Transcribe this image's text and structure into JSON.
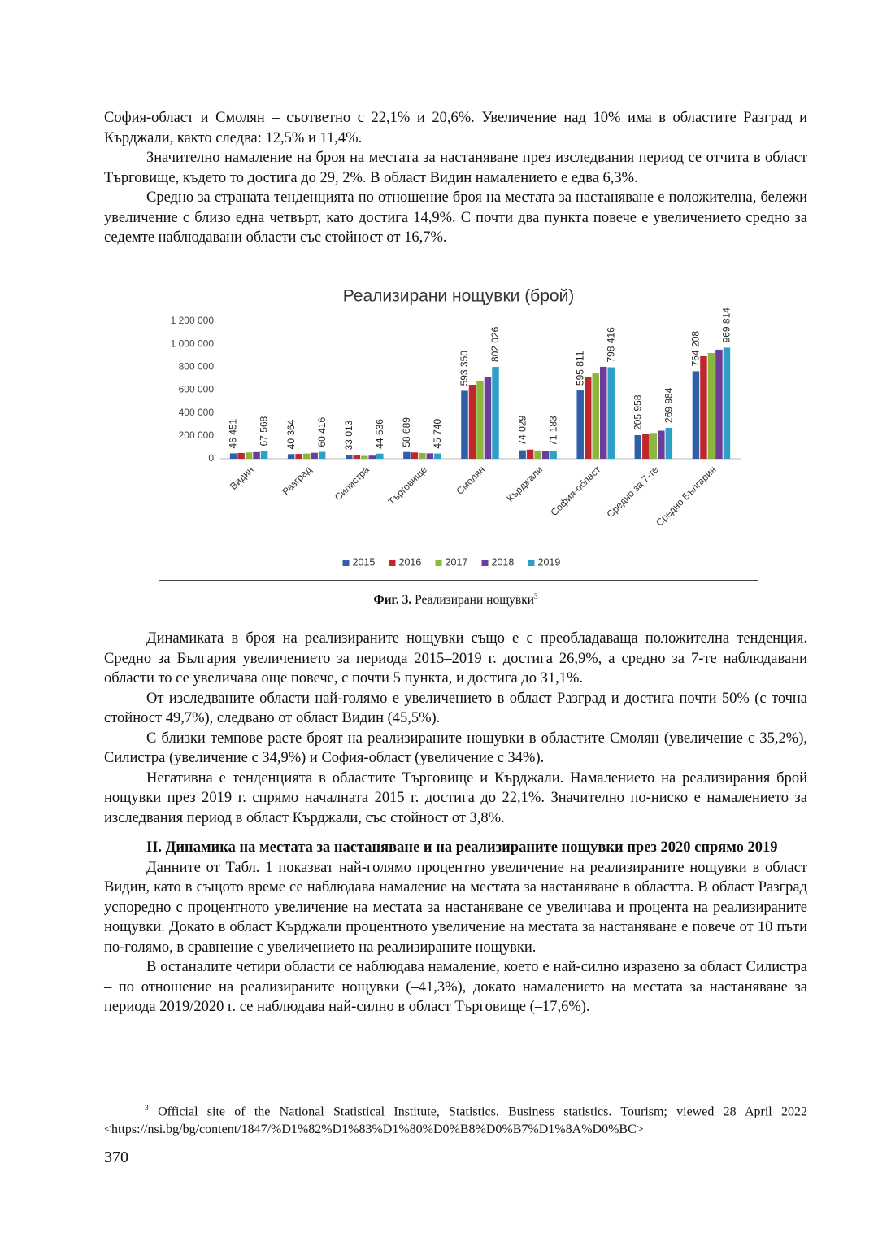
{
  "text_before": [
    "София-област и Смолян – съответно с 22,1% и 20,6%. Увеличение над 10% има в областите Разград и Кърджали, както следва: 12,5% и 11,4%.",
    "Значително намаление на броя на местата за настаняване през изследвания период се отчита в област Търговище, където то достига до 29, 2%. В област Видин намалението е едва 6,3%.",
    "Средно за страната тенденцията по отношение броя на местата за настаняване е положителна, бележи увеличение с близо една четвърт, като достига 14,9%. С почти два пункта повече е увеличението средно за седемте наблюдавани области със стойност от 16,7%."
  ],
  "chart_data": {
    "type": "bar",
    "title": "Реализирани нощувки (брой)",
    "categories": [
      "Видин",
      "Разград",
      "Силистра",
      "Търговище",
      "Смолян",
      "Кърджали",
      "София-област",
      "Средно за 7-те",
      "Средно България"
    ],
    "series": [
      {
        "name": "2015",
        "color": "#2e5fa8",
        "values": [
          46451,
          40364,
          33013,
          58689,
          593350,
          74029,
          595811,
          205958,
          764208
        ],
        "value_labels": [
          "46 451",
          "40 364",
          "33 013",
          "58 689",
          "593 350",
          "74 029",
          "595 811",
          "205 958",
          "764 208"
        ]
      },
      {
        "name": "2016",
        "color": "#c0272d",
        "values": [
          50000,
          42000,
          28000,
          55000,
          646000,
          80000,
          710000,
          215000,
          895000
        ]
      },
      {
        "name": "2017",
        "color": "#8cb63c",
        "values": [
          55000,
          45000,
          25000,
          50000,
          675000,
          72000,
          745000,
          225000,
          923000
        ]
      },
      {
        "name": "2018",
        "color": "#6a3d9a",
        "values": [
          58000,
          52000,
          27000,
          47000,
          717000,
          70000,
          803000,
          245000,
          952000
        ]
      },
      {
        "name": "2019",
        "color": "#2ea0c8",
        "values": [
          67568,
          60416,
          44536,
          45740,
          802026,
          71183,
          798416,
          269984,
          969814
        ],
        "value_labels": [
          "67 568",
          "60 416",
          "44 536",
          "45 740",
          "802 026",
          "71 183",
          "798 416",
          "269 984",
          "969 814"
        ]
      }
    ],
    "ylim": [
      0,
      1200000
    ],
    "yticks": [
      0,
      {
        "value": 200000,
        "label": "200 000"
      },
      {
        "value": 400000,
        "label": "400 000"
      },
      {
        "value": 600000,
        "label": "600 000"
      },
      {
        "value": 800000,
        "label": "800 000"
      },
      {
        "value": 1000000,
        "label": "1 000 000"
      },
      {
        "value": 1200000,
        "label": "1 200 000"
      }
    ],
    "grid": false,
    "legend": "bottom"
  },
  "caption": {
    "label": "Фиг. 3.",
    "text": "Реализирани нощувки",
    "note": "3"
  },
  "text_after": [
    "Динамиката в броя на реализираните нощувки също е с преобладаваща положителна тенденция. Средно за България увеличението за периода 2015–2019 г. достига 26,9%, а средно за 7-те наблюдавани области то се увеличава още повече, с почти 5 пункта, и достига до 31,1%.",
    "От изследваните области най-голямо е увеличението в област Разград и достига почти 50% (с точна стойност 49,7%), следвано от област Видин (45,5%).",
    "С близки темпове расте броят на реализираните нощувки в областите Смолян (увеличение с 35,2%), Силистра (увеличение с 34,9%) и София-област (увеличение с 34%).",
    "Негативна е тенденцията в областите Търговище и Кърджали. Намалението на реализирания брой нощувки през 2019 г. спрямо началната 2015 г. достига до 22,1%. Значително по-ниско е намалението за изследвания период в област Кърджали, със стойност от 3,8%."
  ],
  "heading": "II. Динамика на местата за настаняване и на реализираните нощувки през 2020 спрямо 2019",
  "text_section": [
    "Данните от Табл. 1 показват най-голямо процентно увеличение на реализираните нощувки в област Видин, като в същото време се наблюдава намаление на местата за настаняване в областта. В област Разград успоредно с процентното увеличение на местата за настаняване се увеличава и процента на реализираните нощувки. Докато в област Кърджали процентното увеличение на местата за настаняване е повече от 10 пъти по-голямо, в сравнение с увеличението на реализираните нощувки.",
    "В останалите четири области се наблюдава намаление, което е най-силно изразено за област Силистра – по отношение на реализираните нощувки (–41,3%), докато намалението на местата за настаняване за периода 2019/2020 г. се наблюдава най-силно в област Търговище (–17,6%)."
  ],
  "footnote": {
    "marker": "3",
    "text": "Official site of the National Statistical Institute, Statistics. Business statistics. Tourism; viewed 28 April 2022 <https://nsi.bg/bg/content/1847/%D1%82%D1%83%D1%80%D0%B8%D0%B7%D1%8A%D0%BC>"
  },
  "page_number": "370"
}
